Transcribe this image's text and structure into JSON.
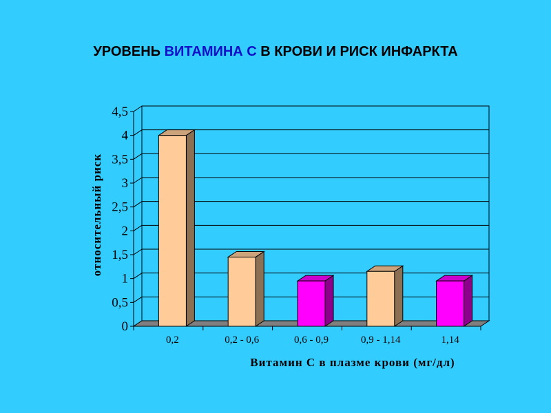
{
  "title": {
    "part1": "УРОВЕНЬ ",
    "highlight": "ВИТАМИНА С",
    "part2": " В КРОВИ И РИСК ИНФАРКТА",
    "highlight_color": "#1010C8"
  },
  "colors": {
    "background": "#33CCFF",
    "peach": "#FFCC99",
    "magenta": "#FF00FF"
  },
  "chart_data": {
    "type": "bar",
    "categories": [
      "0,2",
      "0,2 - 0,6",
      "0,6 - 0,9",
      "0,9 - 1,14",
      "1,14"
    ],
    "values": [
      4,
      1.45,
      0.95,
      1.15,
      0.95
    ],
    "bar_colors": [
      "peach",
      "peach",
      "magenta",
      "peach",
      "magenta"
    ],
    "ylabel": "относительный риск",
    "xlabel": "Витамин С в плазме крови (мг/дл)",
    "ylim": [
      0,
      4.5
    ],
    "yticks": [
      0,
      0.5,
      1,
      1.5,
      2,
      2.5,
      3,
      3.5,
      4,
      4.5
    ],
    "ytick_labels": [
      "0",
      "0,5",
      "1",
      "1,5",
      "2",
      "2,5",
      "3",
      "3,5",
      "4",
      "4,5"
    ],
    "grid": true,
    "legend": "none",
    "style": "3d"
  }
}
